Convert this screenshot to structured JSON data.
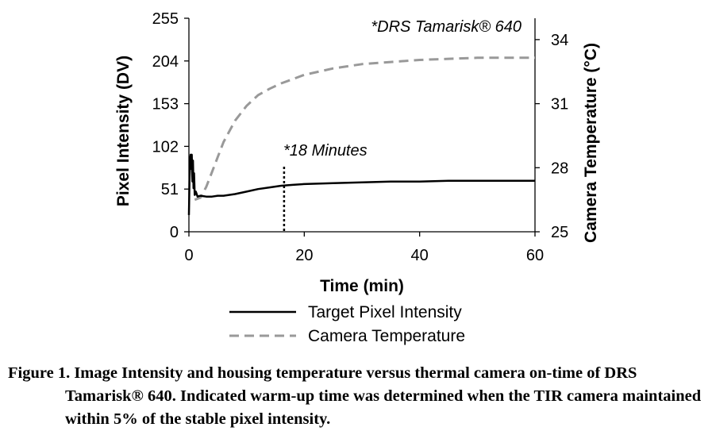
{
  "chart_data": {
    "type": "line",
    "x_label": "Time (min)",
    "y_label_left": "Pixel Intensity (DV)",
    "y_label_right": "Camera Temperature (°C)",
    "x_range": [
      0,
      60
    ],
    "x_ticks": [
      0,
      20,
      40,
      60
    ],
    "y_left_range": [
      0,
      255
    ],
    "y_left_ticks": [
      0,
      51,
      102,
      153,
      204,
      255
    ],
    "y_right_range": [
      25,
      35
    ],
    "y_right_ticks": [
      25,
      28,
      31,
      34
    ],
    "grid": false,
    "series": [
      {
        "name": "Target Pixel Intensity",
        "axis": "left",
        "color": "#000000",
        "style": "solid",
        "x": [
          0,
          0.1,
          0.2,
          0.3,
          0.4,
          0.5,
          0.6,
          0.7,
          0.8,
          0.9,
          1.0,
          1.2,
          1.5,
          2,
          3,
          4,
          5,
          6,
          8,
          10,
          12,
          14,
          16,
          18,
          20,
          25,
          30,
          35,
          40,
          45,
          50,
          55,
          60
        ],
        "y": [
          20,
          60,
          88,
          92,
          75,
          92,
          60,
          85,
          52,
          70,
          44,
          48,
          42,
          43,
          42,
          42,
          43,
          43,
          45,
          48,
          51,
          53,
          55,
          56,
          57,
          58,
          59,
          60,
          60,
          61,
          61,
          61,
          61
        ]
      },
      {
        "name": "Camera Temperature",
        "axis": "right",
        "color": "#999999",
        "style": "dashed",
        "x": [
          1,
          2,
          3,
          4,
          5,
          6,
          8,
          10,
          12,
          14,
          16,
          18,
          20,
          25,
          30,
          35,
          40,
          45,
          50,
          55,
          60
        ],
        "y": [
          26.5,
          26.6,
          27.1,
          27.8,
          28.5,
          29.2,
          30.2,
          30.9,
          31.4,
          31.7,
          31.95,
          32.15,
          32.35,
          32.65,
          32.85,
          32.95,
          33.05,
          33.1,
          33.15,
          33.15,
          33.15
        ]
      }
    ],
    "annotations": [
      {
        "text": "*18 Minutes",
        "x": 16.5
      },
      {
        "text": "*DRS Tamarisk® 640"
      }
    ],
    "legend_position": "bottom"
  },
  "caption": "Figure 1. Image Intensity and housing temperature versus thermal camera on-time of DRS Tamarisk® 640. Indicated warm-up time was determined when the TIR camera maintained within 5% of the stable pixel intensity."
}
